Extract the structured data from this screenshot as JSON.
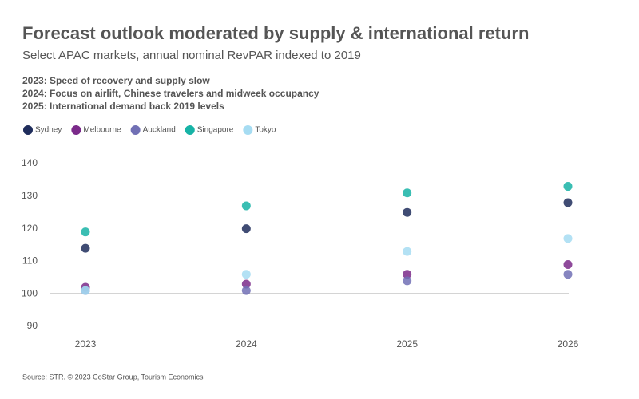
{
  "chart_data": {
    "type": "dot",
    "title": "Forecast outlook moderated by supply & international return",
    "subtitle": "Select APAC markets, annual nominal RevPAR indexed to 2019",
    "notes": [
      "2023: Speed of recovery and supply slow",
      "2024: Focus on airlift, Chinese travelers and midweek occupancy",
      "2025: International demand back 2019 levels"
    ],
    "source": "Source: STR. © 2023 CoStar Group, Tourism Economics",
    "categories": [
      "2023",
      "2024",
      "2025",
      "2026"
    ],
    "series": [
      {
        "name": "Sydney",
        "color": "#1f2d5c",
        "values": [
          114,
          120,
          125,
          128
        ]
      },
      {
        "name": "Melbourne",
        "color": "#7b2a8a",
        "values": [
          102,
          103,
          106,
          109
        ]
      },
      {
        "name": "Auckland",
        "color": "#7170b5",
        "values": [
          101,
          101,
          104,
          106
        ]
      },
      {
        "name": "Singapore",
        "color": "#17b3a6",
        "values": [
          119,
          127,
          131,
          133
        ]
      },
      {
        "name": "Tokyo",
        "color": "#a6dcf2",
        "values": [
          101,
          106,
          113,
          117
        ]
      }
    ],
    "ylim": [
      90,
      140
    ],
    "yticks": [
      90,
      100,
      110,
      120,
      130,
      140
    ],
    "baseline": 100
  }
}
